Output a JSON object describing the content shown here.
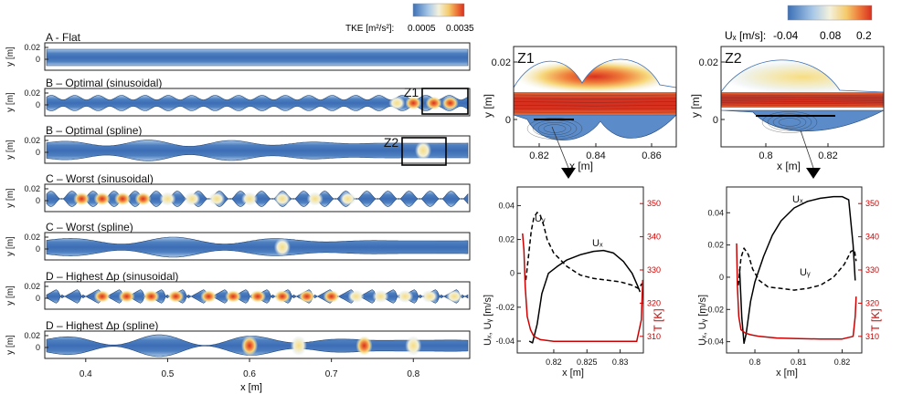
{
  "colors": {
    "cfd_low": "#3b6fb6",
    "cfd_mid": "#f4f1dc",
    "cfd_high": "#d7301f",
    "temperature_axis": "#cc0000",
    "ux_line": "#000000",
    "uy_line": "#000000"
  },
  "left_panel": {
    "colorbar": {
      "label": "TKE [m²/s²]:",
      "min_label": "0.0005",
      "max_label": "0.0035"
    },
    "ylabel": "y [m]",
    "xlabel": "x [m]",
    "x_ticks": [
      "0.4",
      "0.5",
      "0.6",
      "0.7",
      "0.8"
    ],
    "y_ticks": [
      "0.02",
      "0"
    ],
    "zoom_tags": [
      "Z1",
      "Z2"
    ],
    "cases": [
      {
        "title": "A - Flat",
        "shape": "flat"
      },
      {
        "title": "B – Optimal (sinusoidal)",
        "shape": "optimal-sinusoidal"
      },
      {
        "title": "B – Optimal (spline)",
        "shape": "optimal-spline"
      },
      {
        "title": "C – Worst (sinusoidal)",
        "shape": "worst-sinusoidal"
      },
      {
        "title": "C – Worst (spline)",
        "shape": "worst-spline"
      },
      {
        "title": "D – Highest Δp (sinusoidal)",
        "shape": "highest-dp-sinusoidal"
      },
      {
        "title": "D – Highest Δp (spline)",
        "shape": "highest-dp-spline"
      }
    ]
  },
  "right_colorbar": {
    "label": "Uₓ [m/s]:",
    "ticks": [
      "-0.04",
      "0.08",
      "0.2"
    ]
  },
  "zooms": [
    {
      "tag": "Z1",
      "xlabel": "x [m]",
      "ylabel": "y [m]",
      "x_ticks": [
        "0.82",
        "0.84",
        "0.86"
      ],
      "y_ticks": [
        "0.02",
        "0"
      ]
    },
    {
      "tag": "Z2",
      "xlabel": "x [m]",
      "ylabel": "y [m]",
      "x_ticks": [
        "0.8",
        "0.82"
      ],
      "y_ticks": [
        "0.02",
        "0"
      ]
    }
  ],
  "chart_data": [
    {
      "type": "line",
      "title": "",
      "xlabel": "x [m]",
      "ylabel": "Uₓ, Uᵧ [m/s]",
      "y2label": "T [K]",
      "xlim": [
        0.8145,
        0.8335
      ],
      "ylim": [
        -0.047,
        0.051
      ],
      "y2lim": [
        305,
        355
      ],
      "x_ticks": [
        "0.82",
        "0.825",
        "0.83"
      ],
      "y_ticks": [
        "0.04",
        "0.02",
        "0",
        "-0.02",
        "-0.04"
      ],
      "y2_ticks": [
        "350",
        "340",
        "330",
        "320",
        "310"
      ],
      "series": [
        {
          "name": "Uₓ",
          "axis": "left",
          "style": "solid",
          "x": [
            0.8163,
            0.8168,
            0.8175,
            0.8182,
            0.8192,
            0.8205,
            0.822,
            0.824,
            0.826,
            0.8275,
            0.829,
            0.8305,
            0.8318,
            0.8327,
            0.833
          ],
          "values": [
            -0.04,
            -0.041,
            -0.03,
            -0.012,
            0.0,
            0.004,
            0.008,
            0.011,
            0.013,
            0.0135,
            0.012,
            0.007,
            0.0,
            -0.008,
            -0.011
          ]
        },
        {
          "name": "Uᵧ",
          "axis": "left",
          "style": "dashed",
          "x": [
            0.8158,
            0.8162,
            0.8166,
            0.817,
            0.8175,
            0.818,
            0.8185,
            0.819,
            0.82,
            0.822,
            0.824,
            0.826,
            0.828,
            0.83,
            0.8318,
            0.8328,
            0.8333
          ],
          "values": [
            -0.004,
            0.01,
            0.025,
            0.033,
            0.036,
            0.034,
            0.028,
            0.02,
            0.012,
            0.004,
            -0.001,
            -0.003,
            -0.004,
            -0.005,
            -0.007,
            -0.009,
            -0.006
          ]
        },
        {
          "name": "T",
          "axis": "right",
          "style": "solid-red",
          "x": [
            0.8153,
            0.8155,
            0.8157,
            0.816,
            0.8165,
            0.817,
            0.818,
            0.82,
            0.825,
            0.83,
            0.8325,
            0.8332,
            0.8334
          ],
          "values": [
            341,
            336,
            325,
            316,
            312,
            310,
            309,
            308.5,
            308.5,
            308.5,
            308.5,
            315,
            327
          ]
        }
      ]
    },
    {
      "type": "line",
      "title": "",
      "xlabel": "x [m]",
      "ylabel": "Uₓ, Uᵧ [m/s]",
      "y2label": "T [K]",
      "xlim": [
        0.7935,
        0.8245
      ],
      "ylim": [
        -0.047,
        0.056
      ],
      "y2lim": [
        305,
        355
      ],
      "x_ticks": [
        "0.8",
        "0.81",
        "0.82"
      ],
      "y_ticks": [
        "0.04",
        "0.02",
        "0",
        "-0.02",
        "-0.04"
      ],
      "y2_ticks": [
        "350",
        "340",
        "330",
        "320",
        "310"
      ],
      "series": [
        {
          "name": "Uₓ",
          "axis": "left",
          "style": "solid",
          "x": [
            0.7965,
            0.797,
            0.7975,
            0.798,
            0.799,
            0.8,
            0.802,
            0.804,
            0.806,
            0.809,
            0.812,
            0.815,
            0.818,
            0.82,
            0.8215,
            0.8225,
            0.823
          ],
          "values": [
            0.005,
            -0.025,
            -0.041,
            -0.035,
            -0.015,
            -0.003,
            0.013,
            0.026,
            0.035,
            0.043,
            0.047,
            0.049,
            0.05,
            0.05,
            0.048,
            0.02,
            -0.002
          ]
        },
        {
          "name": "Uᵧ",
          "axis": "left",
          "style": "dashed",
          "x": [
            0.7962,
            0.7968,
            0.7975,
            0.7985,
            0.7995,
            0.801,
            0.803,
            0.806,
            0.809,
            0.812,
            0.815,
            0.818,
            0.8205,
            0.822,
            0.8228,
            0.8232
          ],
          "values": [
            -0.005,
            0.012,
            0.018,
            0.014,
            0.005,
            -0.002,
            -0.006,
            -0.007,
            -0.008,
            -0.007,
            -0.005,
            0.0,
            0.008,
            0.016,
            0.017,
            0.01
          ]
        },
        {
          "name": "T",
          "axis": "right",
          "style": "solid-red",
          "x": [
            0.7958,
            0.796,
            0.7963,
            0.7968,
            0.7978,
            0.799,
            0.801,
            0.805,
            0.81,
            0.815,
            0.82,
            0.8225,
            0.823,
            0.8232
          ],
          "values": [
            338,
            325,
            316,
            312,
            311,
            310.5,
            310,
            309.5,
            309.3,
            309.2,
            309.2,
            310,
            316,
            322
          ]
        }
      ]
    }
  ]
}
